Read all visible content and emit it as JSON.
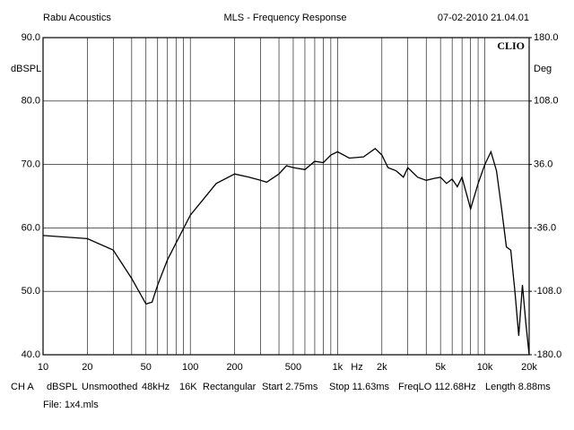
{
  "chart_data": {
    "type": "line",
    "header_left": "Rabu Acoustics",
    "title": "MLS - Frequency Response",
    "header_right": "07-02-2010 21.04.01",
    "brand": "CLIO",
    "ylabel": "dBSPL",
    "y2label": "Deg",
    "xlabel": "Hz",
    "log_x": true,
    "color": "#000000",
    "xlim": [
      10,
      20000
    ],
    "xticks": [
      10,
      20,
      50,
      100,
      200,
      500,
      {
        "value": 1000,
        "label": "1k"
      },
      {
        "value": 2000,
        "label": "2k"
      },
      {
        "value": 5000,
        "label": "5k"
      },
      {
        "value": 10000,
        "label": "10k"
      },
      {
        "value": 20000,
        "label": "20k"
      }
    ],
    "xgrid": [
      30,
      40,
      60,
      70,
      80,
      90,
      300,
      400,
      600,
      700,
      800,
      900,
      3000,
      4000,
      6000,
      7000,
      8000,
      9000
    ],
    "ylim": [
      40,
      90
    ],
    "yticks": [
      {
        "value": 40,
        "label": "40.0"
      },
      {
        "value": 50,
        "label": "50.0"
      },
      {
        "value": 60,
        "label": "60.0"
      },
      {
        "value": 70,
        "label": "70.0"
      },
      {
        "value": 80,
        "label": "80.0"
      },
      {
        "value": 90,
        "label": "90.0"
      }
    ],
    "y2lim": [
      -180,
      180
    ],
    "y2ticks": [
      {
        "value": -180,
        "label": "-180.0"
      },
      {
        "value": -108,
        "label": "-108.0"
      },
      {
        "value": -36,
        "label": "-36.0"
      },
      {
        "value": 36,
        "label": "36.0"
      },
      {
        "value": 108,
        "label": "108.0"
      },
      {
        "value": 180,
        "label": "180.0"
      }
    ],
    "grid": true,
    "x": [
      10,
      20,
      30,
      40,
      50,
      55,
      60,
      70,
      100,
      150,
      200,
      250,
      300,
      330,
      400,
      450,
      500,
      600,
      700,
      800,
      900,
      1000,
      1200,
      1500,
      1800,
      2000,
      2200,
      2500,
      2800,
      3000,
      3500,
      4000,
      4500,
      5000,
      5500,
      6000,
      6500,
      7000,
      8000,
      9000,
      10000,
      11000,
      12000,
      13000,
      14000,
      15000,
      16000,
      17000,
      18000,
      19000,
      20000
    ],
    "values": [
      58.8,
      58.3,
      56.5,
      52,
      48,
      48.3,
      51,
      55,
      62,
      67,
      68.5,
      68,
      67.5,
      67.2,
      68.5,
      69.8,
      69.5,
      69.2,
      70.5,
      70.3,
      71.5,
      72,
      71,
      71.2,
      72.5,
      71.5,
      69.5,
      69,
      68,
      69.5,
      68,
      67.5,
      67.8,
      68,
      67,
      67.7,
      66.5,
      68,
      63,
      67,
      70,
      72,
      69,
      63,
      57,
      56.5,
      50,
      43,
      51,
      45,
      40
    ],
    "info": [
      "CH A",
      "dBSPL",
      "Unsmoothed",
      "48kHz",
      "16K",
      "Rectangular",
      "Start 2.75ms",
      "Stop 11.63ms",
      "FreqLO 112.68Hz",
      "Length 8.88ms"
    ],
    "file": "File: 1x4.mls"
  }
}
